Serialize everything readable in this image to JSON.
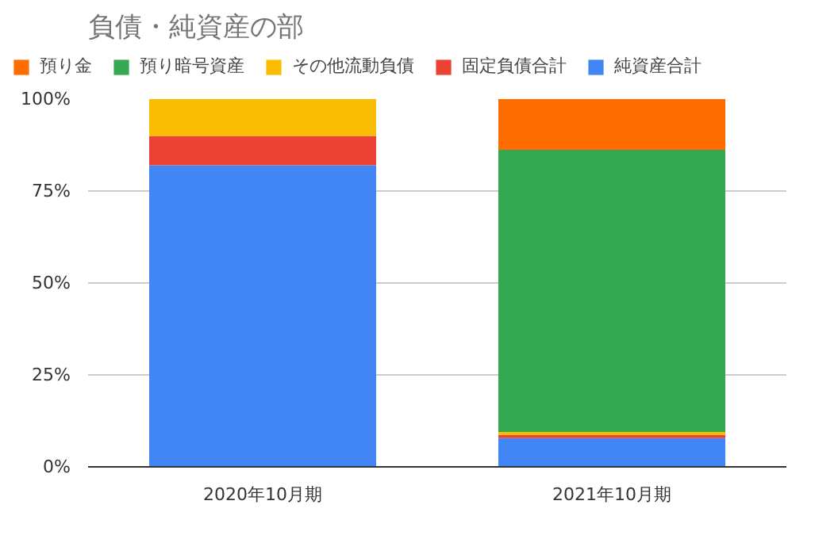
{
  "chart_data": {
    "type": "bar",
    "title": "負債・純資産の部",
    "stacked": true,
    "categories": [
      "2020年10月期",
      "2021年10月期"
    ],
    "series": [
      {
        "name": "純資産合計",
        "color": "#4285f4",
        "values": [
          82,
          7.8
        ]
      },
      {
        "name": "固定負債合計",
        "color": "#ea4335",
        "values": [
          8,
          0.8
        ]
      },
      {
        "name": "その他流動負債",
        "color": "#fbbc04",
        "values": [
          10,
          0.9
        ]
      },
      {
        "name": "預り暗号資産",
        "color": "#34a853",
        "values": [
          0,
          76.7
        ]
      },
      {
        "name": "預り金",
        "color": "#ff6d01",
        "values": [
          0,
          13.8
        ]
      }
    ],
    "ylim": [
      0,
      100
    ],
    "yticks": [
      {
        "value": 0,
        "label": "0%"
      },
      {
        "value": 25,
        "label": "25%"
      },
      {
        "value": 50,
        "label": "50%"
      },
      {
        "value": 75,
        "label": "75%"
      },
      {
        "value": 100,
        "label": "100%"
      }
    ],
    "grid": "y",
    "legend": "top"
  }
}
